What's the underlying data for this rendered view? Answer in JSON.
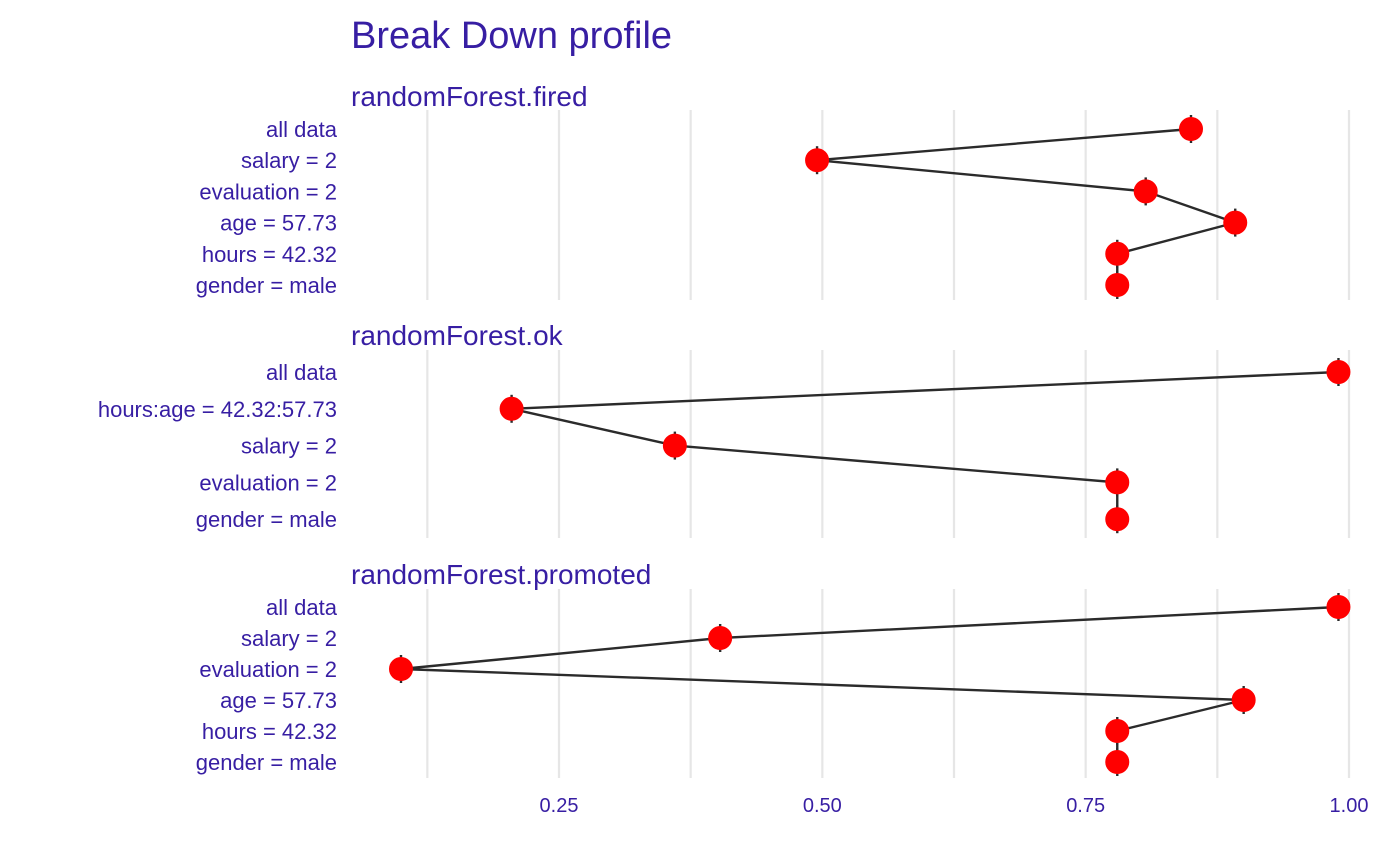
{
  "chart_data": {
    "type": "line",
    "title": "Break Down profile",
    "xlim": [
      0.1,
      1.0
    ],
    "x_ticks": [
      0.25,
      0.5,
      0.75,
      1.0
    ],
    "x_tick_labels": [
      "0.25",
      "0.50",
      "0.75",
      "1.00"
    ],
    "grid": true,
    "point_color": "#ff0000",
    "line_color": "#2b2b2b",
    "text_color": "#371ea3",
    "panels": [
      {
        "name": "randomForest.fired",
        "variables": [
          "all data",
          "salary = 2",
          "evaluation = 2",
          "age = 57.73",
          "hours = 42.32",
          "gender = male"
        ],
        "values": [
          0.85,
          0.495,
          0.807,
          0.892,
          0.78,
          0.78
        ]
      },
      {
        "name": "randomForest.ok",
        "variables": [
          "all data",
          "hours:age = 42.32:57.73",
          "salary = 2",
          "evaluation = 2",
          "gender = male"
        ],
        "values": [
          0.99,
          0.205,
          0.36,
          0.78,
          0.78
        ]
      },
      {
        "name": "randomForest.promoted",
        "variables": [
          "all data",
          "salary = 2",
          "evaluation = 2",
          "age = 57.73",
          "hours = 42.32",
          "gender = male"
        ],
        "values": [
          0.99,
          0.403,
          0.1,
          0.9,
          0.78,
          0.78
        ]
      }
    ]
  }
}
